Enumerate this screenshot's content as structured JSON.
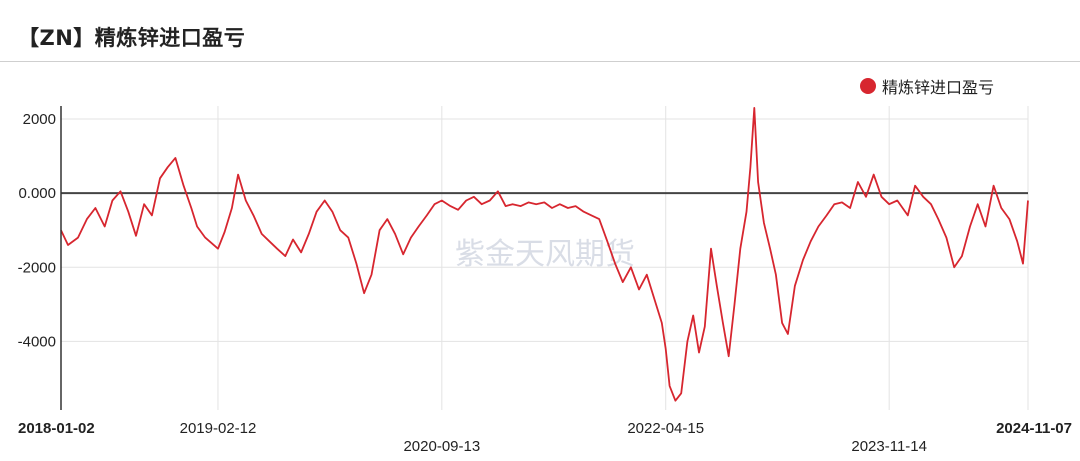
{
  "title": "【ZN】精炼锌进口盈亏",
  "watermark": "紫金天风期货",
  "colors": {
    "series": "#d7262f",
    "zero_line": "#444444",
    "grid": "#e3e3e3",
    "axis": "#333333"
  },
  "chart_data": {
    "type": "line",
    "title": "【ZN】精炼锌进口盈亏",
    "legend": {
      "position": "top-right",
      "entries": [
        "精炼锌进口盈亏"
      ]
    },
    "grid": true,
    "ylim": [
      -5850,
      2350
    ],
    "y_ticks": [
      {
        "value": 2000,
        "label": "2000"
      },
      {
        "value": 0,
        "label": "0.000"
      },
      {
        "value": -2000,
        "label": "-2000"
      },
      {
        "value": -4000,
        "label": "-4000"
      }
    ],
    "x_range": [
      "2018-01-02",
      "2024-11-07"
    ],
    "x_ticks": [
      {
        "date": "2018-01-02",
        "label": "2018-01-02",
        "row": 1,
        "bold": true
      },
      {
        "date": "2019-02-12",
        "label": "2019-02-12",
        "row": 1,
        "bold": false
      },
      {
        "date": "2020-09-13",
        "label": "2020-09-13",
        "row": 2,
        "bold": false
      },
      {
        "date": "2022-04-15",
        "label": "2022-04-15",
        "row": 1,
        "bold": false
      },
      {
        "date": "2023-11-14",
        "label": "2023-11-14",
        "row": 2,
        "bold": false
      },
      {
        "date": "2024-11-07",
        "label": "2024-11-07",
        "row": 1,
        "bold": true
      }
    ],
    "series": [
      {
        "name": "精炼锌进口盈亏",
        "points": [
          [
            "2018-01-02",
            -1000
          ],
          [
            "2018-01-20",
            -1400
          ],
          [
            "2018-02-15",
            -1200
          ],
          [
            "2018-03-10",
            -700
          ],
          [
            "2018-04-01",
            -400
          ],
          [
            "2018-04-25",
            -900
          ],
          [
            "2018-05-15",
            -200
          ],
          [
            "2018-06-05",
            50
          ],
          [
            "2018-06-25",
            -500
          ],
          [
            "2018-07-15",
            -1150
          ],
          [
            "2018-08-05",
            -300
          ],
          [
            "2018-08-25",
            -600
          ],
          [
            "2018-09-15",
            400
          ],
          [
            "2018-10-05",
            700
          ],
          [
            "2018-10-25",
            950
          ],
          [
            "2018-11-15",
            200
          ],
          [
            "2018-12-05",
            -400
          ],
          [
            "2018-12-20",
            -900
          ],
          [
            "2019-01-10",
            -1200
          ],
          [
            "2019-02-12",
            -1500
          ],
          [
            "2019-03-01",
            -1050
          ],
          [
            "2019-03-20",
            -400
          ],
          [
            "2019-04-05",
            500
          ],
          [
            "2019-04-25",
            -200
          ],
          [
            "2019-05-15",
            -600
          ],
          [
            "2019-06-05",
            -1100
          ],
          [
            "2019-06-25",
            -1300
          ],
          [
            "2019-07-15",
            -1500
          ],
          [
            "2019-08-05",
            -1700
          ],
          [
            "2019-08-25",
            -1250
          ],
          [
            "2019-09-15",
            -1600
          ],
          [
            "2019-10-05",
            -1100
          ],
          [
            "2019-10-25",
            -500
          ],
          [
            "2019-11-15",
            -200
          ],
          [
            "2019-12-05",
            -500
          ],
          [
            "2019-12-25",
            -1000
          ],
          [
            "2020-01-15",
            -1200
          ],
          [
            "2020-02-05",
            -1900
          ],
          [
            "2020-02-25",
            -2700
          ],
          [
            "2020-03-15",
            -2200
          ],
          [
            "2020-04-05",
            -1000
          ],
          [
            "2020-04-25",
            -700
          ],
          [
            "2020-05-15",
            -1100
          ],
          [
            "2020-06-05",
            -1650
          ],
          [
            "2020-06-25",
            -1200
          ],
          [
            "2020-07-15",
            -900
          ],
          [
            "2020-08-05",
            -600
          ],
          [
            "2020-08-25",
            -300
          ],
          [
            "2020-09-13",
            -200
          ],
          [
            "2020-10-05",
            -350
          ],
          [
            "2020-10-25",
            -450
          ],
          [
            "2020-11-15",
            -200
          ],
          [
            "2020-12-05",
            -100
          ],
          [
            "2020-12-25",
            -300
          ],
          [
            "2021-01-15",
            -200
          ],
          [
            "2021-02-05",
            50
          ],
          [
            "2021-02-25",
            -350
          ],
          [
            "2021-03-15",
            -300
          ],
          [
            "2021-04-05",
            -350
          ],
          [
            "2021-04-25",
            -250
          ],
          [
            "2021-05-15",
            -300
          ],
          [
            "2021-06-05",
            -250
          ],
          [
            "2021-06-25",
            -400
          ],
          [
            "2021-07-15",
            -300
          ],
          [
            "2021-08-05",
            -400
          ],
          [
            "2021-08-25",
            -350
          ],
          [
            "2021-09-15",
            -500
          ],
          [
            "2021-10-05",
            -600
          ],
          [
            "2021-10-25",
            -700
          ],
          [
            "2021-11-15",
            -1300
          ],
          [
            "2021-12-05",
            -1900
          ],
          [
            "2021-12-25",
            -2400
          ],
          [
            "2022-01-15",
            -2000
          ],
          [
            "2022-02-05",
            -2600
          ],
          [
            "2022-02-25",
            -2200
          ],
          [
            "2022-03-15",
            -2800
          ],
          [
            "2022-04-05",
            -3500
          ],
          [
            "2022-04-15",
            -4200
          ],
          [
            "2022-04-25",
            -5200
          ],
          [
            "2022-05-10",
            -5600
          ],
          [
            "2022-05-25",
            -5400
          ],
          [
            "2022-06-10",
            -4000
          ],
          [
            "2022-06-25",
            -3300
          ],
          [
            "2022-07-10",
            -4300
          ],
          [
            "2022-07-25",
            -3600
          ],
          [
            "2022-08-10",
            -1500
          ],
          [
            "2022-08-25",
            -2500
          ],
          [
            "2022-09-10",
            -3500
          ],
          [
            "2022-09-25",
            -4400
          ],
          [
            "2022-10-10",
            -3000
          ],
          [
            "2022-10-25",
            -1500
          ],
          [
            "2022-11-10",
            -500
          ],
          [
            "2022-11-20",
            700
          ],
          [
            "2022-11-30",
            2300
          ],
          [
            "2022-12-10",
            300
          ],
          [
            "2022-12-25",
            -800
          ],
          [
            "2023-01-10",
            -1500
          ],
          [
            "2023-01-25",
            -2200
          ],
          [
            "2023-02-10",
            -3500
          ],
          [
            "2023-02-25",
            -3800
          ],
          [
            "2023-03-15",
            -2500
          ],
          [
            "2023-04-05",
            -1800
          ],
          [
            "2023-04-25",
            -1300
          ],
          [
            "2023-05-15",
            -900
          ],
          [
            "2023-06-05",
            -600
          ],
          [
            "2023-06-25",
            -300
          ],
          [
            "2023-07-15",
            -250
          ],
          [
            "2023-08-05",
            -400
          ],
          [
            "2023-08-25",
            300
          ],
          [
            "2023-09-15",
            -100
          ],
          [
            "2023-10-05",
            500
          ],
          [
            "2023-10-25",
            -100
          ],
          [
            "2023-11-14",
            -300
          ],
          [
            "2023-12-05",
            -200
          ],
          [
            "2024-01-01",
            -600
          ],
          [
            "2024-01-20",
            200
          ],
          [
            "2024-02-10",
            -100
          ],
          [
            "2024-03-01",
            -300
          ],
          [
            "2024-03-20",
            -700
          ],
          [
            "2024-04-10",
            -1200
          ],
          [
            "2024-04-30",
            -2000
          ],
          [
            "2024-05-20",
            -1700
          ],
          [
            "2024-06-10",
            -900
          ],
          [
            "2024-06-30",
            -300
          ],
          [
            "2024-07-20",
            -900
          ],
          [
            "2024-08-10",
            200
          ],
          [
            "2024-08-30",
            -400
          ],
          [
            "2024-09-20",
            -700
          ],
          [
            "2024-10-10",
            -1300
          ],
          [
            "2024-10-25",
            -1900
          ],
          [
            "2024-11-07",
            -200
          ]
        ]
      }
    ]
  }
}
